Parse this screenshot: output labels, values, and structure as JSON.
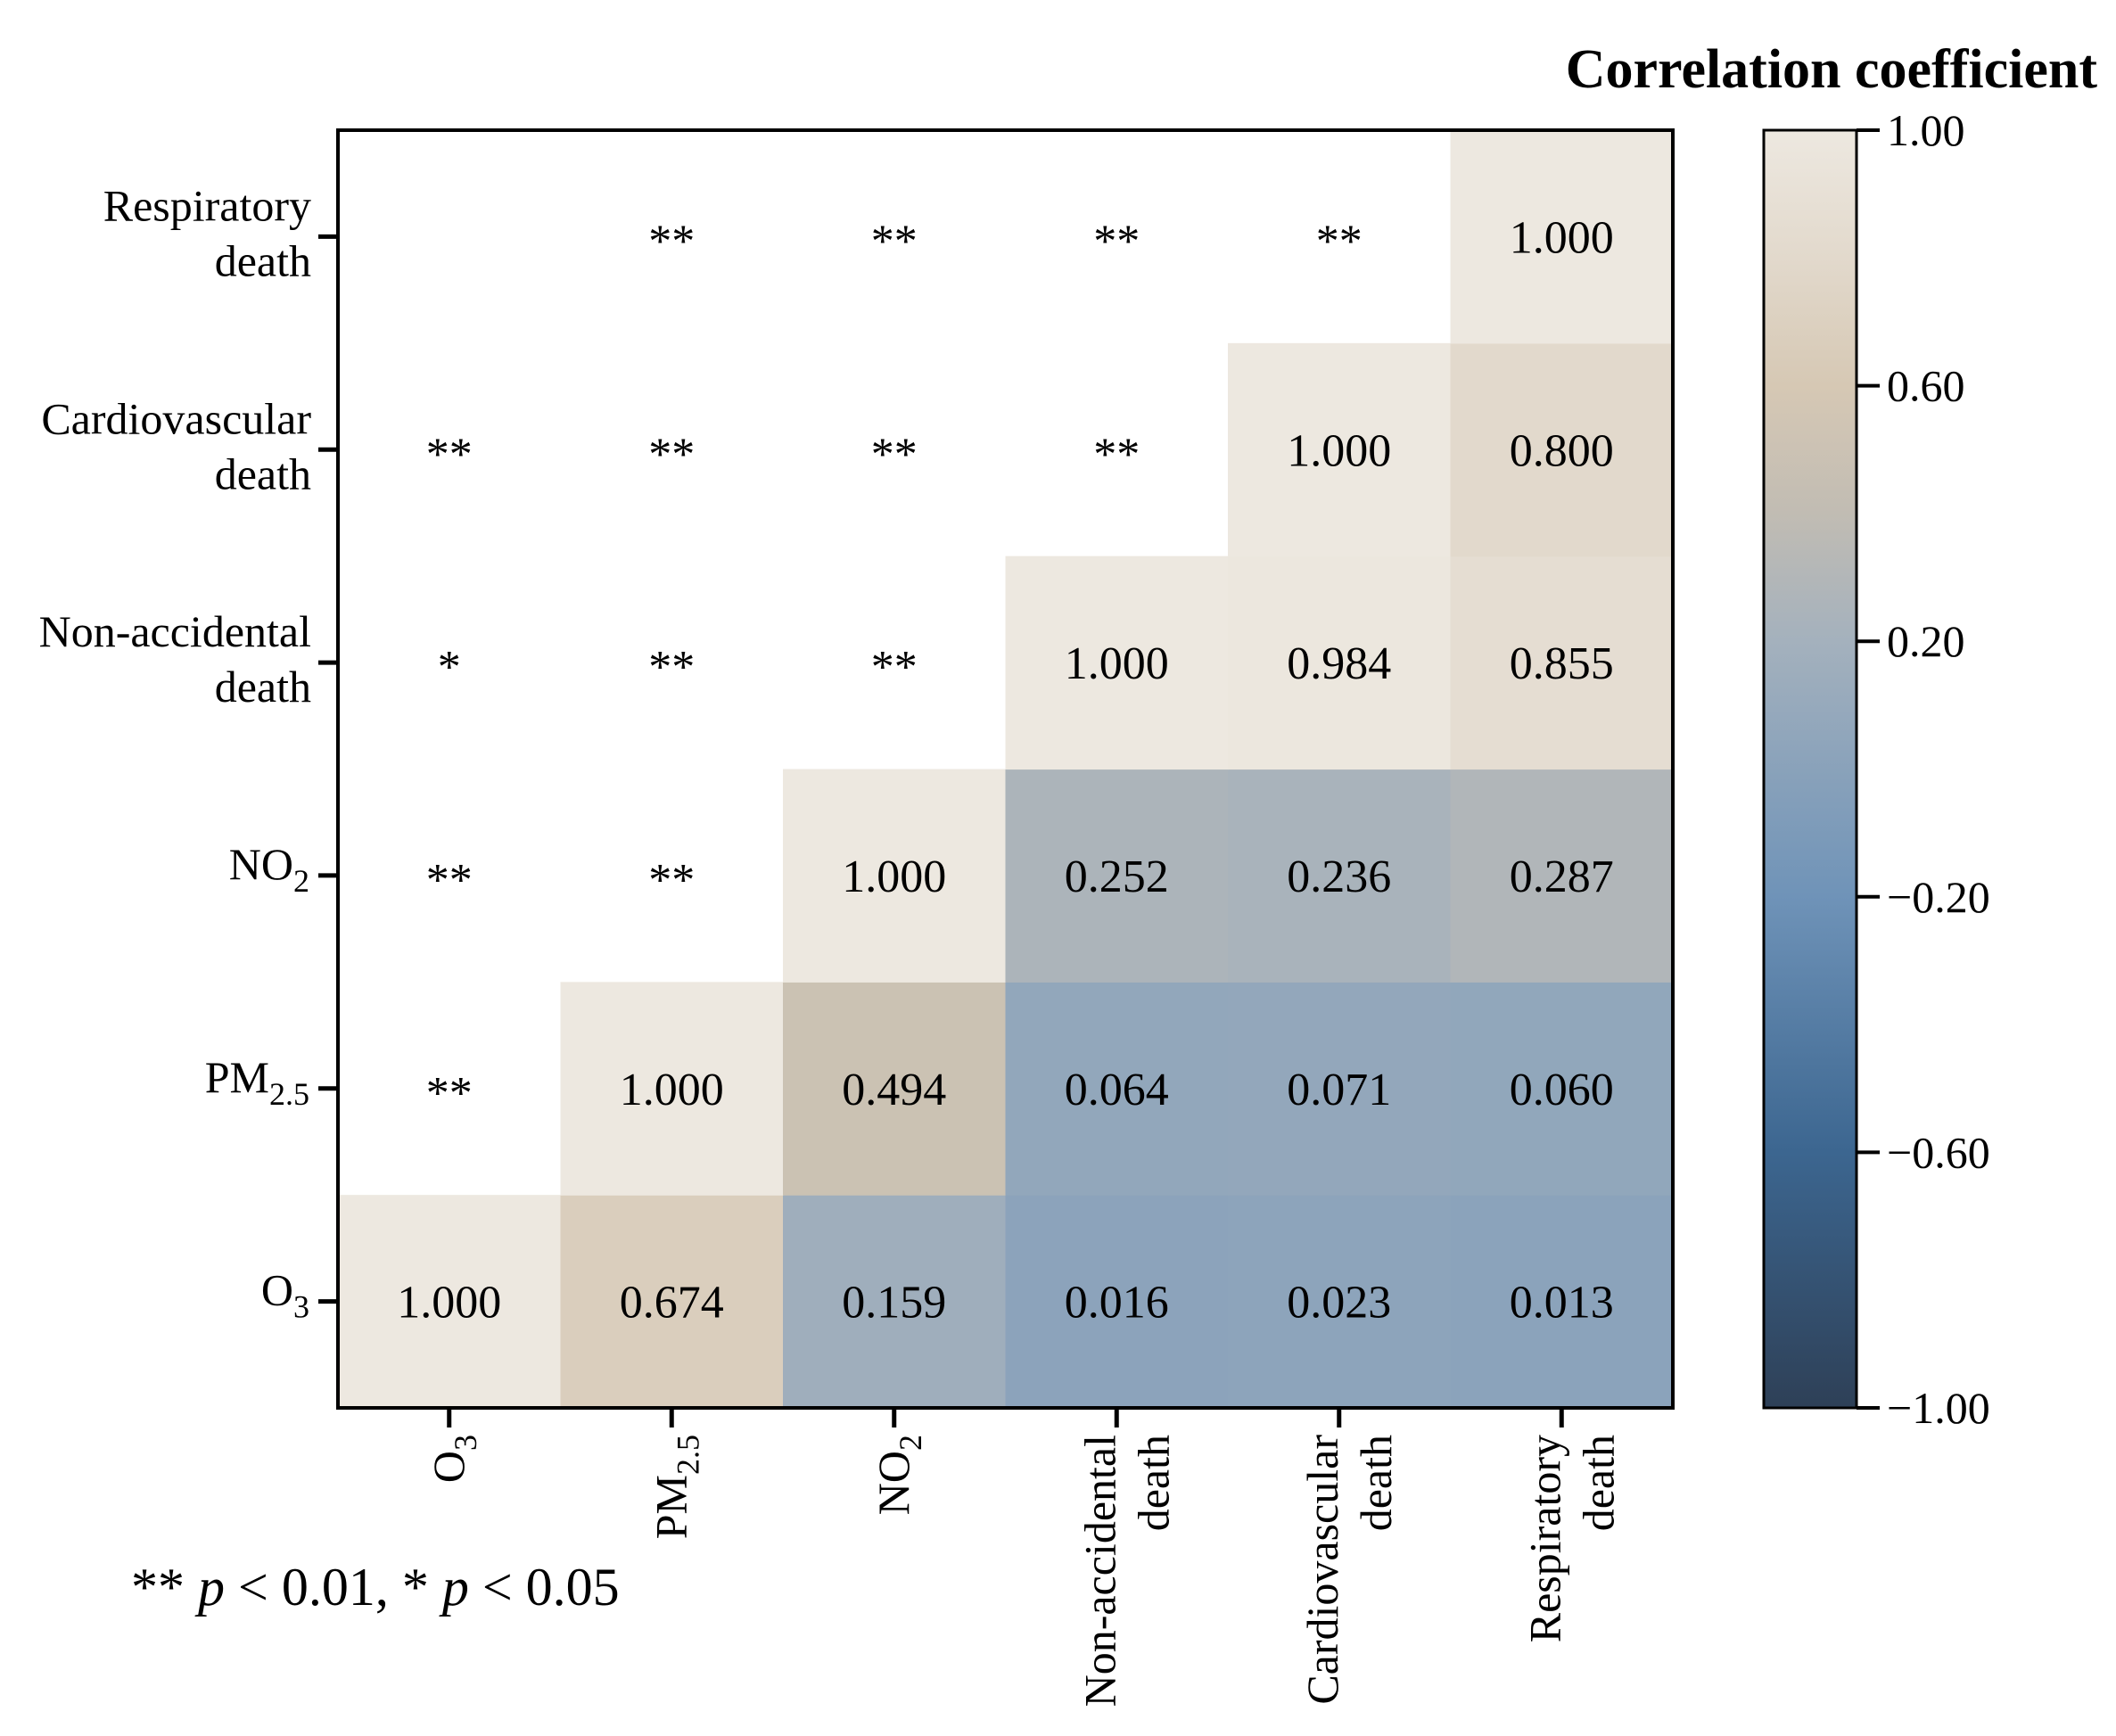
{
  "chart_data": {
    "type": "heatmap",
    "title": "",
    "xlabel": "",
    "ylabel": "",
    "categories": [
      {
        "id": "o3",
        "base": "O",
        "sub": "3"
      },
      {
        "id": "pm25",
        "base": "PM",
        "sub": "2.5"
      },
      {
        "id": "no2",
        "base": "NO",
        "sub": "2"
      },
      {
        "id": "nonacc",
        "lines": [
          "Non-accidental",
          "death"
        ]
      },
      {
        "id": "cardio",
        "lines": [
          "Cardiovascular",
          "death"
        ]
      },
      {
        "id": "resp",
        "lines": [
          "Respiratory",
          "death"
        ]
      }
    ],
    "x_order": [
      "o3",
      "pm25",
      "no2",
      "nonacc",
      "cardio",
      "resp"
    ],
    "y_order_top_to_bottom": [
      "resp",
      "cardio",
      "nonacc",
      "no2",
      "pm25",
      "o3"
    ],
    "cells": [
      {
        "x": "o3",
        "y": "o3",
        "value": 1.0,
        "label": "1.000"
      },
      {
        "x": "pm25",
        "y": "o3",
        "value": 0.674,
        "label": "0.674"
      },
      {
        "x": "no2",
        "y": "o3",
        "value": 0.159,
        "label": "0.159"
      },
      {
        "x": "nonacc",
        "y": "o3",
        "value": 0.016,
        "label": "0.016"
      },
      {
        "x": "cardio",
        "y": "o3",
        "value": 0.023,
        "label": "0.023"
      },
      {
        "x": "resp",
        "y": "o3",
        "value": 0.013,
        "label": "0.013"
      },
      {
        "x": "pm25",
        "y": "pm25",
        "value": 1.0,
        "label": "1.000"
      },
      {
        "x": "no2",
        "y": "pm25",
        "value": 0.494,
        "label": "0.494"
      },
      {
        "x": "nonacc",
        "y": "pm25",
        "value": 0.064,
        "label": "0.064"
      },
      {
        "x": "cardio",
        "y": "pm25",
        "value": 0.071,
        "label": "0.071"
      },
      {
        "x": "resp",
        "y": "pm25",
        "value": 0.06,
        "label": "0.060"
      },
      {
        "x": "no2",
        "y": "no2",
        "value": 1.0,
        "label": "1.000"
      },
      {
        "x": "nonacc",
        "y": "no2",
        "value": 0.252,
        "label": "0.252"
      },
      {
        "x": "cardio",
        "y": "no2",
        "value": 0.236,
        "label": "0.236"
      },
      {
        "x": "resp",
        "y": "no2",
        "value": 0.287,
        "label": "0.287"
      },
      {
        "x": "nonacc",
        "y": "nonacc",
        "value": 1.0,
        "label": "1.000"
      },
      {
        "x": "cardio",
        "y": "nonacc",
        "value": 0.984,
        "label": "0.984"
      },
      {
        "x": "resp",
        "y": "nonacc",
        "value": 0.855,
        "label": "0.855"
      },
      {
        "x": "cardio",
        "y": "cardio",
        "value": 1.0,
        "label": "1.000"
      },
      {
        "x": "resp",
        "y": "cardio",
        "value": 0.8,
        "label": "0.800"
      },
      {
        "x": "resp",
        "y": "resp",
        "value": 1.0,
        "label": "1.000"
      }
    ],
    "significance": [
      {
        "x": "o3",
        "y": "pm25",
        "mark": "**"
      },
      {
        "x": "o3",
        "y": "no2",
        "mark": "**"
      },
      {
        "x": "o3",
        "y": "nonacc",
        "mark": "*"
      },
      {
        "x": "o3",
        "y": "cardio",
        "mark": "**"
      },
      {
        "x": "pm25",
        "y": "no2",
        "mark": "**"
      },
      {
        "x": "pm25",
        "y": "nonacc",
        "mark": "**"
      },
      {
        "x": "pm25",
        "y": "cardio",
        "mark": "**"
      },
      {
        "x": "pm25",
        "y": "resp",
        "mark": "**"
      },
      {
        "x": "no2",
        "y": "nonacc",
        "mark": "**"
      },
      {
        "x": "no2",
        "y": "cardio",
        "mark": "**"
      },
      {
        "x": "no2",
        "y": "resp",
        "mark": "**"
      },
      {
        "x": "nonacc",
        "y": "cardio",
        "mark": "**"
      },
      {
        "x": "nonacc",
        "y": "resp",
        "mark": "**"
      },
      {
        "x": "cardio",
        "y": "resp",
        "mark": "**"
      }
    ],
    "colorbar": {
      "title": "Correlation coefficient",
      "range": [
        -1.0,
        1.0
      ],
      "ticks": [
        {
          "value": 1.0,
          "label": "1.00"
        },
        {
          "value": 0.6,
          "label": "0.60"
        },
        {
          "value": 0.2,
          "label": "0.20"
        },
        {
          "value": -0.2,
          "label": "−0.20"
        },
        {
          "value": -0.6,
          "label": "−0.60"
        },
        {
          "value": -1.0,
          "label": "−1.00"
        }
      ],
      "stops": [
        {
          "value": -1.0,
          "color": "#2e4057"
        },
        {
          "value": -0.6,
          "color": "#3c6690"
        },
        {
          "value": -0.2,
          "color": "#6f93b8"
        },
        {
          "value": 0.2,
          "color": "#a4b1bd"
        },
        {
          "value": 0.4,
          "color": "#c1bcb3"
        },
        {
          "value": 0.6,
          "color": "#d6c8b4"
        },
        {
          "value": 0.8,
          "color": "#e2d9cc"
        },
        {
          "value": 1.0,
          "color": "#ede8e0"
        }
      ]
    },
    "footnote": {
      "parts": [
        {
          "text": "** ",
          "italic": false
        },
        {
          "text": "p",
          "italic": true
        },
        {
          "text": " < 0.01, * ",
          "italic": false
        },
        {
          "text": "p",
          "italic": true
        },
        {
          "text": " < 0.05",
          "italic": false
        }
      ]
    }
  }
}
